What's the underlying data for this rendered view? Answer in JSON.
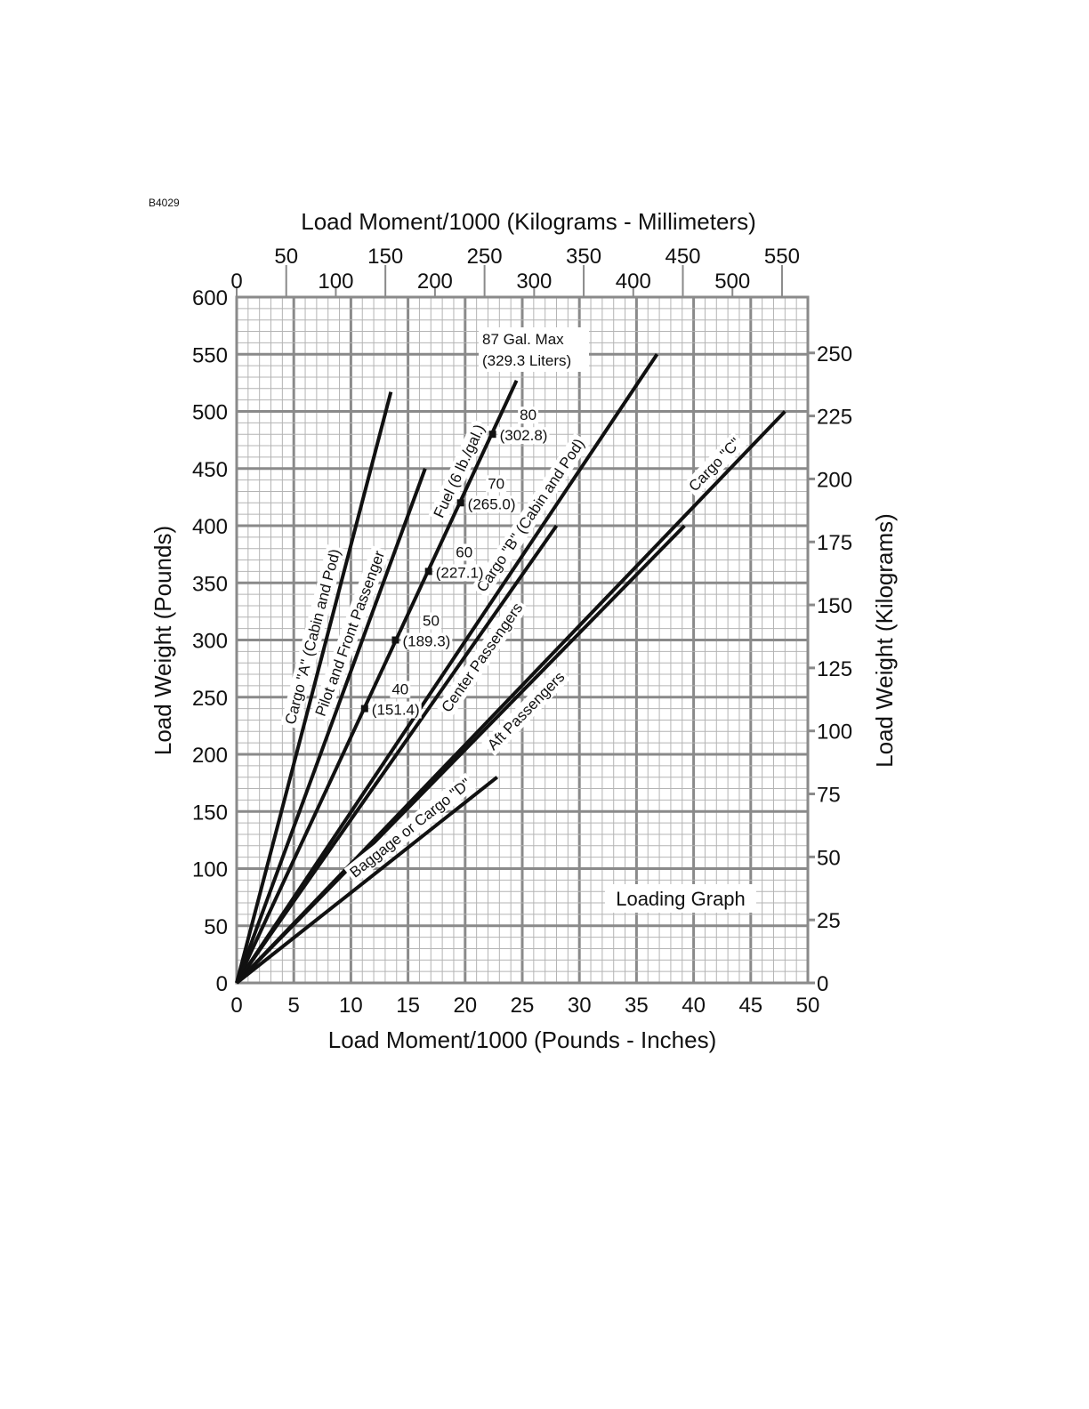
{
  "figure_code": "B4029",
  "chart_data": {
    "type": "line",
    "title": "Loading Graph",
    "xlabel": "Load Moment/1000 (Pounds - Inches)",
    "ylabel": "Load Weight (Pounds)",
    "x2label": "Load Moment/1000 (Kilograms - Millimeters)",
    "y2label": "Load Weight (Kilograms)",
    "xlim": [
      0,
      50
    ],
    "ylim": [
      0,
      600
    ],
    "x_ticks": [
      0,
      5,
      10,
      15,
      20,
      25,
      30,
      35,
      40,
      45,
      50
    ],
    "y_ticks": [
      0,
      50,
      100,
      150,
      200,
      250,
      300,
      350,
      400,
      450,
      500,
      550,
      600
    ],
    "x2_ticks": [
      0,
      50,
      100,
      150,
      200,
      250,
      300,
      350,
      400,
      450,
      500,
      550
    ],
    "y2_ticks": [
      0,
      25,
      50,
      75,
      100,
      125,
      150,
      175,
      200,
      225,
      250
    ],
    "grid": true,
    "series": [
      {
        "name": "Cargo \"A\" (Cabin and Pod)",
        "x": [
          0,
          13.5
        ],
        "y": [
          0,
          517
        ]
      },
      {
        "name": "Pilot and Front Passenger",
        "x": [
          0,
          16.5
        ],
        "y": [
          0,
          450
        ]
      },
      {
        "name": "Fuel (6 lb./gal.)",
        "x": [
          0,
          24.5
        ],
        "y": [
          0,
          527
        ]
      },
      {
        "name": "Cargo \"B\" (Cabin and Pod)",
        "x": [
          0,
          36.8
        ],
        "y": [
          0,
          550
        ]
      },
      {
        "name": "Center Passengers",
        "x": [
          0,
          28
        ],
        "y": [
          0,
          400
        ]
      },
      {
        "name": "Cargo \"C\"",
        "x": [
          0,
          48
        ],
        "y": [
          0,
          500
        ]
      },
      {
        "name": "Aft Passengers",
        "x": [
          0,
          39.2
        ],
        "y": [
          0,
          400
        ]
      },
      {
        "name": "Baggage or Cargo \"D\"",
        "x": [
          0,
          22.8
        ],
        "y": [
          0,
          180
        ]
      }
    ],
    "fuel_marks": [
      {
        "gallons": "40",
        "liters": "(151.4)",
        "x": 11.2,
        "y": 240
      },
      {
        "gallons": "50",
        "liters": "(189.3)",
        "x": 13.9,
        "y": 300
      },
      {
        "gallons": "60",
        "liters": "(227.1)",
        "x": 16.8,
        "y": 360
      },
      {
        "gallons": "70",
        "liters": "(265.0)",
        "x": 19.6,
        "y": 420
      },
      {
        "gallons": "80",
        "liters": "(302.8)",
        "x": 22.4,
        "y": 480
      }
    ],
    "fuel_max_line1": "87 Gal. Max",
    "fuel_max_line2": "(329.3 Liters)"
  }
}
